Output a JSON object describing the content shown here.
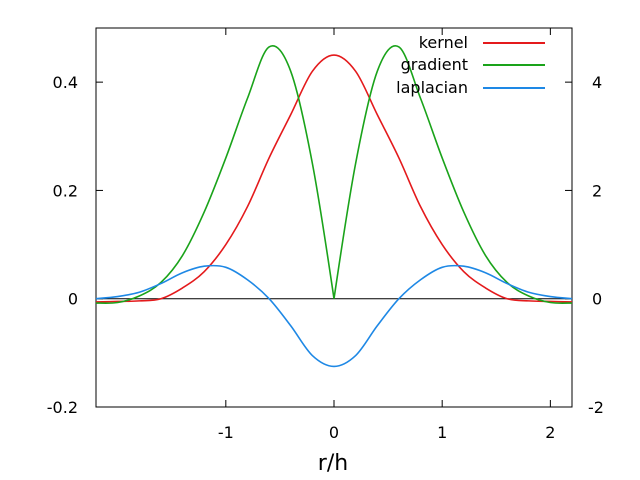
{
  "chart_data": {
    "type": "line",
    "title": "",
    "xlabel": "r/h",
    "ylabel": "",
    "y2label": "",
    "xlim": [
      -2.2,
      2.2
    ],
    "ylim": [
      -0.2,
      0.5
    ],
    "y2lim": [
      -2,
      5
    ],
    "x_ticks": [
      -1,
      0,
      1,
      2
    ],
    "y_ticks": [
      -0.2,
      0,
      0.2,
      0.4
    ],
    "y2_ticks": [
      -2,
      0,
      2,
      4
    ],
    "grid": false,
    "zero_line": true,
    "legend_position": "top-right",
    "series": [
      {
        "name": "kernel",
        "color": "#e41a1c",
        "axis": "y",
        "points": [
          [
            -2.2,
            -0.006
          ],
          [
            -2.0,
            -0.005
          ],
          [
            -1.8,
            -0.004
          ],
          [
            -1.6,
            0.0
          ],
          [
            -1.4,
            0.02
          ],
          [
            -1.2,
            0.05
          ],
          [
            -1.0,
            0.1
          ],
          [
            -0.8,
            0.17
          ],
          [
            -0.6,
            0.26
          ],
          [
            -0.4,
            0.34
          ],
          [
            -0.2,
            0.42
          ],
          [
            0.0,
            0.45
          ],
          [
            0.2,
            0.42
          ],
          [
            0.4,
            0.34
          ],
          [
            0.6,
            0.26
          ],
          [
            0.8,
            0.17
          ],
          [
            1.0,
            0.1
          ],
          [
            1.2,
            0.05
          ],
          [
            1.4,
            0.02
          ],
          [
            1.6,
            0.0
          ],
          [
            1.8,
            -0.004
          ],
          [
            2.0,
            -0.005
          ],
          [
            2.2,
            -0.006
          ]
        ]
      },
      {
        "name": "gradient",
        "color": "#1aa31a",
        "axis": "y2",
        "points": [
          [
            -2.2,
            -0.08
          ],
          [
            -2.0,
            -0.07
          ],
          [
            -1.8,
            0.05
          ],
          [
            -1.6,
            0.3
          ],
          [
            -1.4,
            0.8
          ],
          [
            -1.2,
            1.6
          ],
          [
            -1.0,
            2.6
          ],
          [
            -0.8,
            3.7
          ],
          [
            -0.6,
            4.65
          ],
          [
            -0.4,
            4.2
          ],
          [
            -0.2,
            2.5
          ],
          [
            0.0,
            0.0
          ],
          [
            0.2,
            2.5
          ],
          [
            0.4,
            4.2
          ],
          [
            0.6,
            4.65
          ],
          [
            0.8,
            3.7
          ],
          [
            1.0,
            2.6
          ],
          [
            1.2,
            1.6
          ],
          [
            1.4,
            0.8
          ],
          [
            1.6,
            0.3
          ],
          [
            1.8,
            0.05
          ],
          [
            2.0,
            -0.07
          ],
          [
            2.2,
            -0.08
          ]
        ]
      },
      {
        "name": "laplacian",
        "color": "#1e88e5",
        "axis": "y",
        "points": [
          [
            -2.2,
            0.0
          ],
          [
            -2.0,
            0.004
          ],
          [
            -1.8,
            0.012
          ],
          [
            -1.6,
            0.028
          ],
          [
            -1.4,
            0.048
          ],
          [
            -1.2,
            0.06
          ],
          [
            -1.0,
            0.058
          ],
          [
            -0.8,
            0.035
          ],
          [
            -0.6,
            0.0
          ],
          [
            -0.4,
            -0.05
          ],
          [
            -0.2,
            -0.105
          ],
          [
            0.0,
            -0.125
          ],
          [
            0.2,
            -0.105
          ],
          [
            0.4,
            -0.05
          ],
          [
            0.6,
            0.0
          ],
          [
            0.8,
            0.035
          ],
          [
            1.0,
            0.058
          ],
          [
            1.2,
            0.06
          ],
          [
            1.4,
            0.048
          ],
          [
            1.6,
            0.028
          ],
          [
            1.8,
            0.012
          ],
          [
            2.0,
            0.004
          ],
          [
            2.2,
            0.0
          ]
        ]
      }
    ]
  },
  "labels": {
    "x_ticks": [
      "-1",
      "0",
      "1",
      "2"
    ],
    "y_ticks": [
      "-0.2",
      "0",
      "0.2",
      "0.4"
    ],
    "y2_ticks": [
      "-2",
      "0",
      "2",
      "4"
    ],
    "xlabel": "r/h",
    "legend": [
      "kernel",
      "gradient",
      "laplacian"
    ]
  }
}
